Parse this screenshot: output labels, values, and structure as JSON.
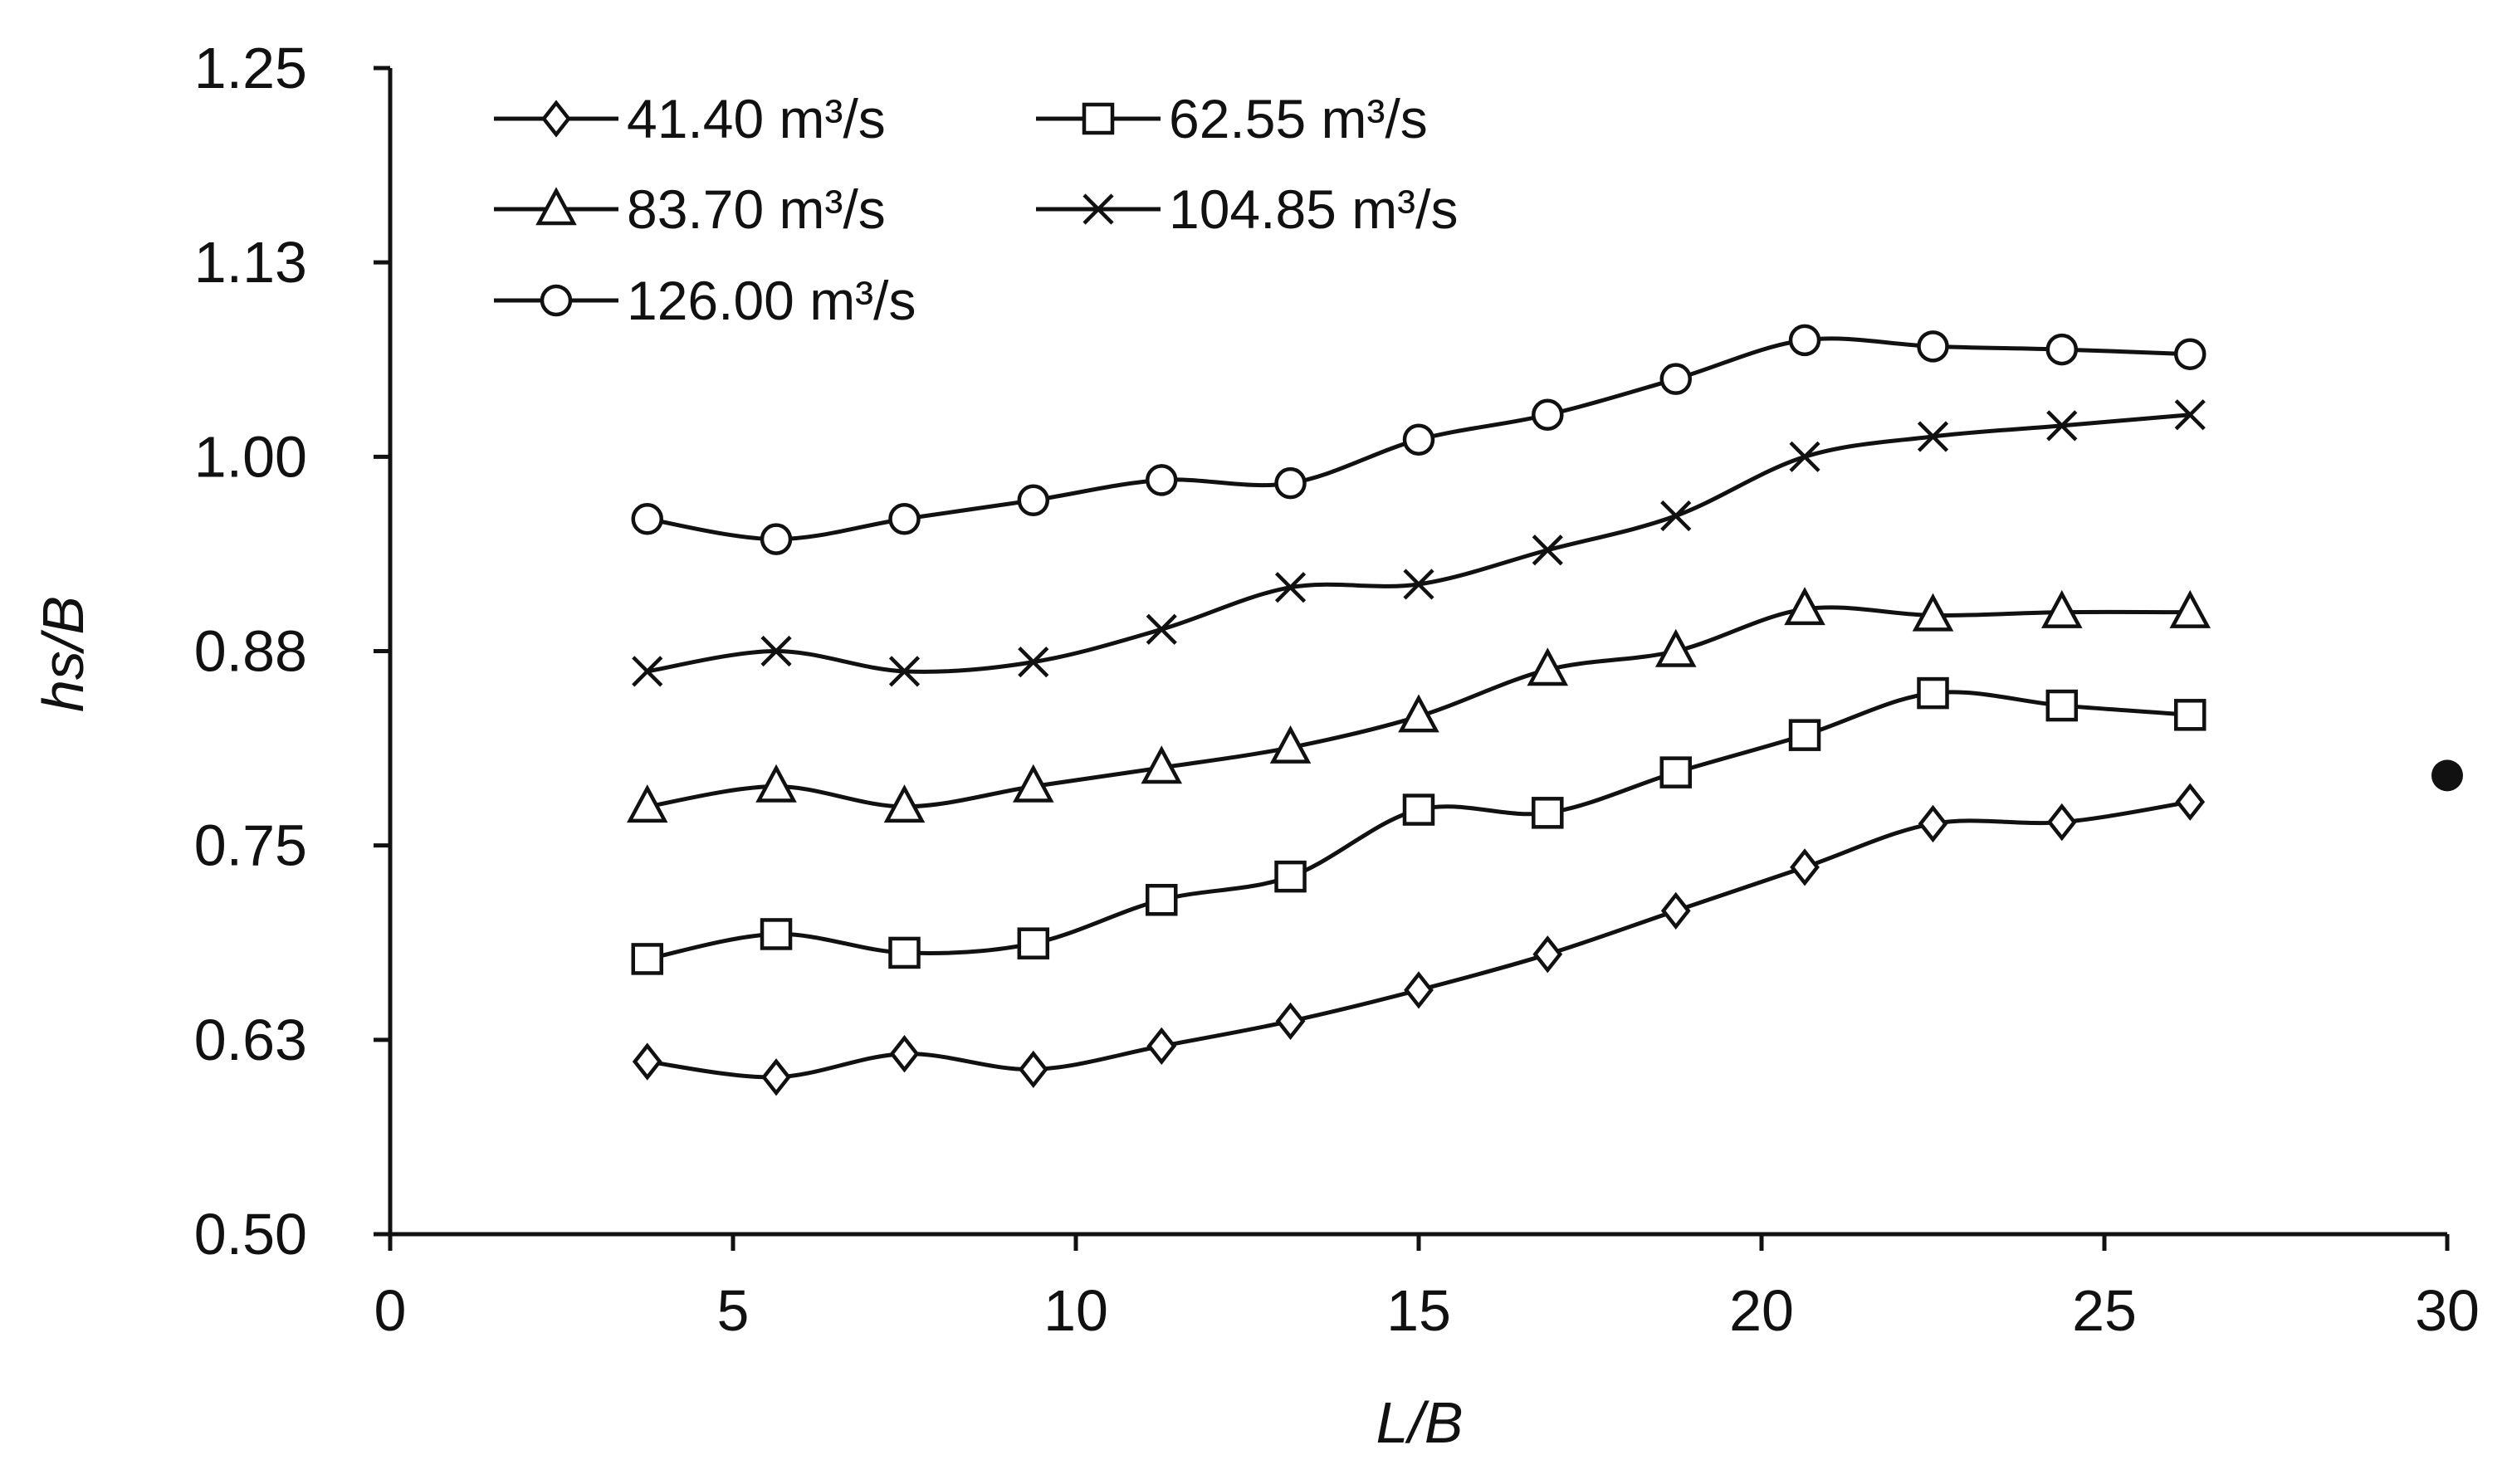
{
  "chart_data": {
    "type": "line",
    "xlabel": "L/B",
    "ylabel": "hs/B",
    "xlim": [
      0,
      30
    ],
    "ylim": [
      0.5,
      1.25
    ],
    "x_ticks": [
      "0",
      "5",
      "10",
      "15",
      "20",
      "25",
      "30"
    ],
    "y_ticks": [
      "0.50",
      "0.63",
      "0.75",
      "0.88",
      "1.00",
      "1.13",
      "1.25"
    ],
    "x": [
      3.75,
      5.63,
      7.5,
      9.38,
      11.25,
      13.13,
      15.0,
      16.88,
      18.75,
      20.63,
      22.5,
      24.38,
      26.25
    ],
    "series": [
      {
        "name": "41.40 m³/s",
        "marker": "diamond",
        "values": [
          0.611,
          0.601,
          0.616,
          0.606,
          0.621,
          0.637,
          0.657,
          0.68,
          0.708,
          0.736,
          0.764,
          0.765,
          0.778
        ]
      },
      {
        "name": "62.55 m³/s",
        "marker": "square",
        "values": [
          0.677,
          0.693,
          0.681,
          0.687,
          0.715,
          0.73,
          0.773,
          0.771,
          0.797,
          0.821,
          0.848,
          0.84,
          0.834
        ]
      },
      {
        "name": "83.70 m³/s",
        "marker": "triangle",
        "values": [
          0.775,
          0.788,
          0.775,
          0.788,
          0.8,
          0.813,
          0.833,
          0.863,
          0.875,
          0.902,
          0.898,
          0.9,
          0.9
        ]
      },
      {
        "name": "104.85 m³/s",
        "marker": "x",
        "values": [
          0.862,
          0.875,
          0.862,
          0.868,
          0.889,
          0.916,
          0.918,
          0.94,
          0.962,
          1.0,
          1.013,
          1.02,
          1.027
        ]
      },
      {
        "name": "126.00 m³/s",
        "marker": "circle",
        "values": [
          0.96,
          0.947,
          0.96,
          0.972,
          0.985,
          0.983,
          1.011,
          1.027,
          1.05,
          1.075,
          1.071,
          1.069,
          1.066
        ]
      }
    ],
    "extra_points": [
      {
        "x": 30.0,
        "y": 0.795
      }
    ],
    "grid": false,
    "legend_position": "top-left"
  },
  "colors": {
    "line": "#111111",
    "background": "#ffffff"
  }
}
